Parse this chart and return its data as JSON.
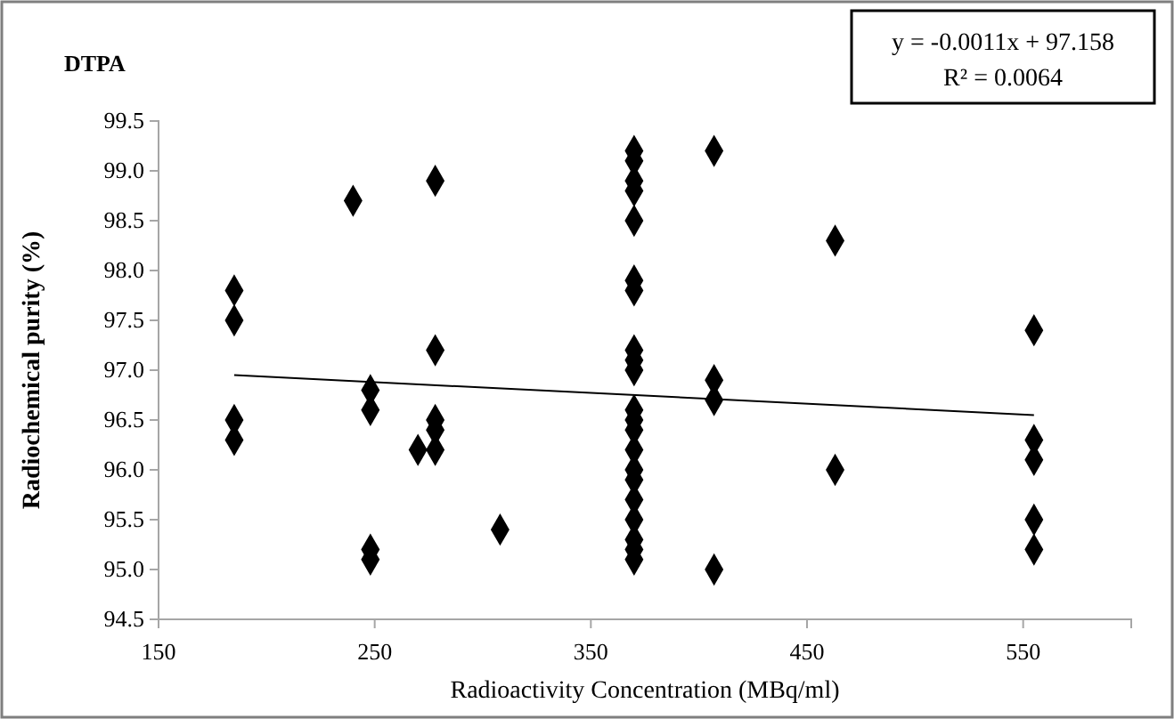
{
  "chart_data": {
    "type": "scatter",
    "title": "DTPA",
    "xlabel": "Radioactivity Concentration (MBq/ml)",
    "ylabel": "Radiochemical purity (%)",
    "annotations": [
      "y = -0.0011x + 97.158",
      "R² = 0.0064"
    ],
    "series": [
      {
        "color": "#000000",
        "marker": "diamond",
        "x": [
          185,
          185,
          185,
          185,
          240,
          248,
          248,
          248,
          248,
          270,
          278,
          278,
          278,
          278,
          278,
          308,
          370,
          370,
          370,
          370,
          370,
          370,
          370,
          370,
          370,
          370,
          370,
          370,
          370,
          370,
          370,
          370,
          370,
          370,
          370,
          370,
          370,
          407,
          407,
          407,
          407,
          463,
          463,
          555,
          555,
          555,
          555,
          555
        ],
        "values": [
          97.8,
          97.5,
          96.5,
          96.3,
          98.7,
          96.8,
          96.6,
          95.2,
          95.1,
          96.2,
          98.9,
          97.2,
          96.5,
          96.4,
          96.2,
          95.4,
          99.2,
          99.1,
          98.9,
          98.8,
          98.5,
          97.9,
          97.8,
          97.2,
          97.1,
          97.0,
          96.6,
          96.5,
          96.4,
          96.2,
          96.0,
          95.9,
          95.7,
          95.5,
          95.3,
          95.2,
          95.1,
          99.2,
          96.9,
          96.7,
          95.0,
          98.3,
          96.0,
          97.4,
          96.3,
          96.1,
          95.5,
          95.2
        ]
      },
      {
        "type": "line",
        "color": "#000000",
        "line_style": "solid",
        "marker": "none",
        "x": [
          185,
          555
        ],
        "values": [
          96.95,
          96.55
        ]
      }
    ],
    "xlim": [
      150,
      600
    ],
    "xticks": [
      150,
      250,
      350,
      450,
      550
    ],
    "ylim": [
      94.5,
      99.5
    ],
    "yticks": [
      {
        "value": 94.5,
        "label": "94.5"
      },
      {
        "value": 95,
        "label": "95.0"
      },
      {
        "value": 95.5,
        "label": "95.5"
      },
      {
        "value": 96,
        "label": "96.0"
      },
      {
        "value": 96.5,
        "label": "96.5"
      },
      {
        "value": 97,
        "label": "97.0"
      },
      {
        "value": 97.5,
        "label": "97.5"
      },
      {
        "value": 98,
        "label": "98.0"
      },
      {
        "value": 98.5,
        "label": "98.5"
      },
      {
        "value": 99,
        "label": "99.0"
      },
      {
        "value": 99.5,
        "label": "99.5"
      }
    ],
    "grid": false
  }
}
